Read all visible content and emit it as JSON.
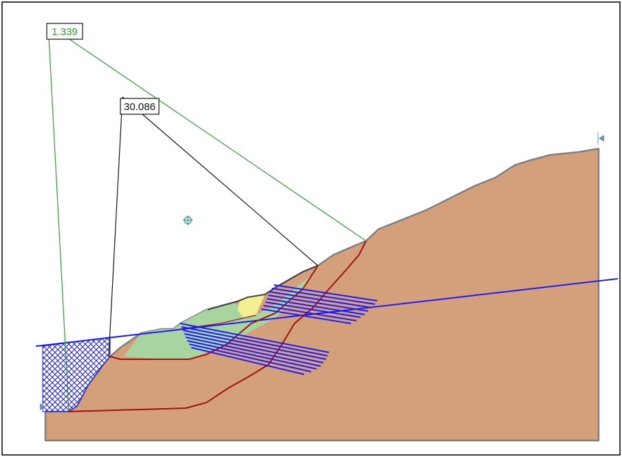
{
  "analysis": {
    "global_minimum": {
      "factor_of_safety": "1.339",
      "color": "#2e9b2e"
    },
    "selected_surface": {
      "factor_of_safety": "30.086",
      "color": "#111111"
    }
  },
  "colors": {
    "slope_material": "#d4a07c",
    "ground_outline": "#7f7f7f",
    "water_table": "#1a1aff",
    "ponded_water_hatch": "#2020d0",
    "slip_surface": "#a01010",
    "failed_mass_green": "#a8d4a0",
    "failed_mass_yellow": "#f2f090",
    "reinforcement": "#1a1aff",
    "frame": "#000000",
    "center_marker": "#2e8b8b",
    "boundary_marker": "#6a8fc0"
  },
  "icons": {
    "slip_center": "crosshair-circle-icon",
    "left_boundary": "triangle-right-icon",
    "right_boundary": "triangle-left-icon"
  }
}
